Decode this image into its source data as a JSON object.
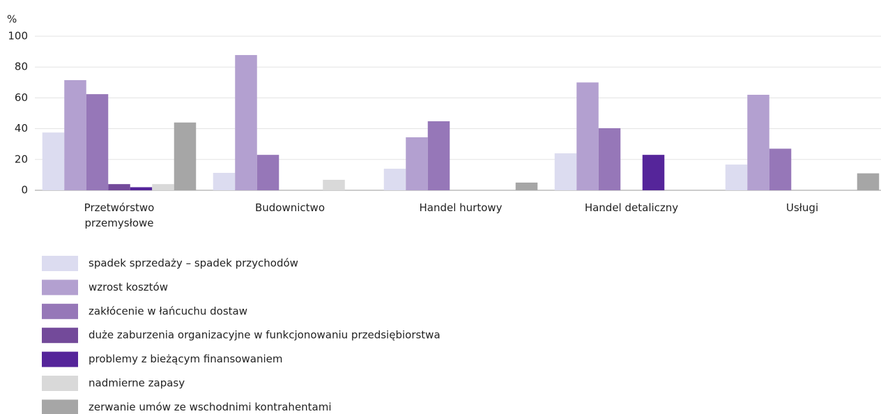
{
  "chart_data": {
    "type": "bar",
    "y_label": "%",
    "categories": [
      "Przetwórstwo przemysłowe",
      "Budownictwo",
      "Handel hurtowy",
      "Handel detaliczny",
      "Usługi"
    ],
    "series": [
      {
        "name": "spadek sprzedaży – spadek przychodów",
        "color": "#dcdcf0",
        "values": [
          37.5,
          11.3,
          14,
          24,
          16.7
        ]
      },
      {
        "name": "wzrost kosztów",
        "color": "#b3a0d0",
        "values": [
          71.5,
          87.8,
          34.4,
          70,
          62
        ]
      },
      {
        "name": "zakłócenie w łańcuchu dostaw",
        "color": "#9677b8",
        "values": [
          62.4,
          23,
          44.8,
          40.3,
          27
        ]
      },
      {
        "name": "duże zaburzenia organizacyjne w funkcjonowaniu przedsiębiorstwa",
        "color": "#734a9a",
        "values": [
          4,
          0,
          0,
          0,
          0
        ]
      },
      {
        "name": "problemy z bieżącym finansowaniem",
        "color": "#55259a",
        "values": [
          2,
          0,
          0,
          23,
          0
        ]
      },
      {
        "name": "nadmierne zapasy",
        "color": "#d9d9d9",
        "values": [
          4,
          6.8,
          0,
          0,
          0
        ]
      },
      {
        "name": "zerwanie umów ze wschodnimi kontrahentami",
        "color": "#a6a6a6",
        "values": [
          44,
          0,
          5,
          0,
          11
        ]
      }
    ],
    "ylim": [
      0,
      100
    ],
    "yticks": [
      0,
      20,
      40,
      60,
      80,
      100
    ],
    "grid": true,
    "legend": "bottom-left"
  }
}
